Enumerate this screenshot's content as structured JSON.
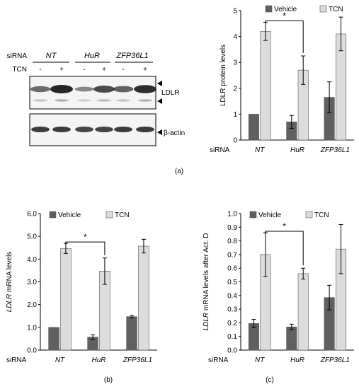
{
  "colors": {
    "vehicle": "#606060",
    "tcn": "#dcdcdc",
    "blot_bg": "#f4f4f4",
    "band": "#1a1a1a"
  },
  "panel_labels": [
    "(a)",
    "(b)",
    "(c)"
  ],
  "blot": {
    "row_sirna_label": "siRNA",
    "row_tcn_label": "TCN",
    "groups": [
      "NT",
      "HuR",
      "ZFP36L1"
    ],
    "tcn_signs": [
      "-",
      "+",
      "-",
      "+",
      "-",
      "+"
    ],
    "ldlr_label": "LDLR",
    "actin_label": "β-actin",
    "ldlr_band_strength": [
      0.55,
      1.0,
      0.35,
      0.75,
      0.6,
      0.95
    ],
    "actin_band_strength": [
      0.85,
      0.85,
      0.8,
      0.8,
      0.85,
      0.85
    ]
  },
  "chart_data": [
    {
      "type": "bar",
      "panel": "(a)",
      "categories": [
        "NT",
        "HuR",
        "ZFP36L1"
      ],
      "xlabel": "siRNA",
      "ylabel": "LDLR protein levels",
      "ylim": [
        0,
        5
      ],
      "yticks": [
        0,
        1,
        2,
        3,
        4,
        5
      ],
      "ytick_labels": [
        "0",
        "1",
        "2",
        "3",
        "4",
        "5"
      ],
      "series": [
        {
          "name": "Vehicle",
          "values": [
            1.0,
            0.7,
            1.65
          ],
          "errors": [
            0,
            0.25,
            0.6
          ]
        },
        {
          "name": "TCN",
          "values": [
            4.2,
            2.7,
            4.1
          ],
          "errors": [
            0.35,
            0.55,
            0.65
          ]
        }
      ],
      "annotation": "*",
      "bracket_between": [
        0,
        1
      ]
    },
    {
      "type": "bar",
      "panel": "(b)",
      "categories": [
        "NT",
        "HuR",
        "ZFP36L1"
      ],
      "xlabel": "siRNA",
      "ylabel": "LDLR mRNA levels",
      "ylim": [
        0,
        6
      ],
      "yticks": [
        0,
        1,
        2,
        3,
        4,
        5,
        6
      ],
      "ytick_labels": [
        "0.0",
        "1.0",
        "2.0",
        "3.0",
        "4.0",
        "5.0",
        "6.0"
      ],
      "series": [
        {
          "name": "Vehicle",
          "values": [
            1.0,
            0.57,
            1.47
          ],
          "errors": [
            0,
            0.1,
            0.05
          ]
        },
        {
          "name": "TCN",
          "values": [
            4.47,
            3.47,
            4.57
          ],
          "errors": [
            0.22,
            0.58,
            0.3
          ]
        }
      ],
      "annotation": "*",
      "bracket_between": [
        0,
        1
      ]
    },
    {
      "type": "bar",
      "panel": "(c)",
      "categories": [
        "NT",
        "HuR",
        "ZFP36L1"
      ],
      "xlabel": "siRNA",
      "ylabel": "LDLR mRNA levels after Act. D",
      "ylim": [
        0,
        1
      ],
      "yticks": [
        0,
        0.1,
        0.2,
        0.3,
        0.4,
        0.5,
        0.6,
        0.7,
        0.8,
        0.9,
        1.0
      ],
      "ytick_labels": [
        "0.0",
        "0.1",
        "0.2",
        "0.3",
        "0.4",
        "0.5",
        "0.6",
        "0.7",
        "0.8",
        "0.9",
        "1.0"
      ],
      "series": [
        {
          "name": "Vehicle",
          "values": [
            0.195,
            0.17,
            0.385
          ],
          "errors": [
            0.03,
            0.02,
            0.09
          ]
        },
        {
          "name": "TCN",
          "values": [
            0.7,
            0.56,
            0.74
          ],
          "errors": [
            0.16,
            0.04,
            0.18
          ]
        }
      ],
      "annotation": "*",
      "bracket_between": [
        0,
        1
      ]
    }
  ]
}
